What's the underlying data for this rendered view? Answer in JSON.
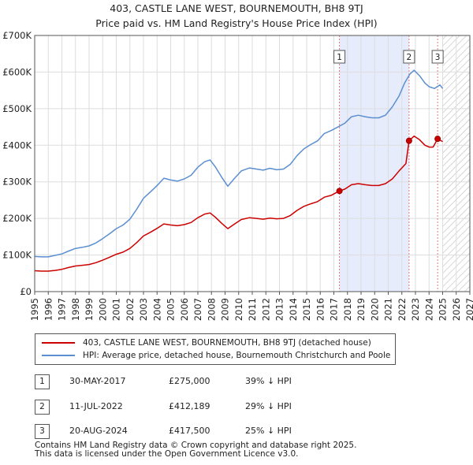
{
  "title": {
    "line1": "403, CASTLE LANE WEST, BOURNEMOUTH, BH8 9TJ",
    "line2": "Price paid vs. HM Land Registry's House Price Index (HPI)"
  },
  "colors": {
    "property": "#cc0000",
    "hpi": "#5b8fd0",
    "shade": "#e6ecfb",
    "hatch": "#bbbbbb",
    "vline": "#e07a7a"
  },
  "legend": {
    "property_label": "403, CASTLE LANE WEST, BOURNEMOUTH, BH8 9TJ (detached house)",
    "hpi_label": "HPI: Average price, detached house, Bournemouth Christchurch and Poole"
  },
  "chart_data": {
    "type": "line",
    "xlim": [
      1995,
      2027
    ],
    "ylim": [
      0,
      700000
    ],
    "x_ticks": [
      1995,
      1996,
      1997,
      1998,
      1999,
      2000,
      2001,
      2002,
      2003,
      2004,
      2005,
      2006,
      2007,
      2008,
      2009,
      2010,
      2011,
      2012,
      2013,
      2014,
      2015,
      2016,
      2017,
      2018,
      2019,
      2020,
      2021,
      2022,
      2023,
      2024,
      2025,
      2026,
      2027
    ],
    "y_ticks": [
      {
        "value": 0,
        "label": "£0"
      },
      {
        "value": 100000,
        "label": "£100K"
      },
      {
        "value": 200000,
        "label": "£200K"
      },
      {
        "value": 300000,
        "label": "£300K"
      },
      {
        "value": 400000,
        "label": "£400K"
      },
      {
        "value": 500000,
        "label": "£500K"
      },
      {
        "value": 600000,
        "label": "£600K"
      },
      {
        "value": 700000,
        "label": "£700K"
      }
    ],
    "shaded_range": [
      2017.41,
      2022.53
    ],
    "future_hatch_start": 2025.0,
    "series": [
      {
        "name": "HPI: Average price, detached house, Bournemouth Christchurch and Poole",
        "color": "#5b8fd0",
        "points": [
          [
            1995.0,
            96000
          ],
          [
            1995.5,
            95000
          ],
          [
            1996.0,
            95000
          ],
          [
            1996.5,
            99000
          ],
          [
            1997.0,
            103000
          ],
          [
            1997.5,
            111000
          ],
          [
            1998.0,
            118000
          ],
          [
            1998.5,
            121000
          ],
          [
            1999.0,
            125000
          ],
          [
            1999.5,
            133000
          ],
          [
            2000.0,
            145000
          ],
          [
            2000.5,
            158000
          ],
          [
            2001.0,
            172000
          ],
          [
            2001.5,
            182000
          ],
          [
            2002.0,
            198000
          ],
          [
            2002.5,
            225000
          ],
          [
            2003.0,
            255000
          ],
          [
            2003.5,
            272000
          ],
          [
            2004.0,
            290000
          ],
          [
            2004.5,
            310000
          ],
          [
            2005.0,
            305000
          ],
          [
            2005.5,
            302000
          ],
          [
            2006.0,
            308000
          ],
          [
            2006.5,
            318000
          ],
          [
            2007.0,
            340000
          ],
          [
            2007.5,
            355000
          ],
          [
            2007.9,
            360000
          ],
          [
            2008.3,
            340000
          ],
          [
            2008.8,
            310000
          ],
          [
            2009.2,
            288000
          ],
          [
            2009.7,
            310000
          ],
          [
            2010.2,
            330000
          ],
          [
            2010.8,
            338000
          ],
          [
            2011.3,
            335000
          ],
          [
            2011.8,
            332000
          ],
          [
            2012.3,
            337000
          ],
          [
            2012.8,
            333000
          ],
          [
            2013.3,
            335000
          ],
          [
            2013.8,
            348000
          ],
          [
            2014.3,
            372000
          ],
          [
            2014.8,
            390000
          ],
          [
            2015.3,
            402000
          ],
          [
            2015.8,
            412000
          ],
          [
            2016.3,
            432000
          ],
          [
            2016.8,
            440000
          ],
          [
            2017.3,
            450000
          ],
          [
            2017.8,
            460000
          ],
          [
            2018.3,
            478000
          ],
          [
            2018.8,
            482000
          ],
          [
            2019.3,
            478000
          ],
          [
            2019.8,
            475000
          ],
          [
            2020.3,
            475000
          ],
          [
            2020.8,
            482000
          ],
          [
            2021.3,
            505000
          ],
          [
            2021.8,
            535000
          ],
          [
            2022.2,
            570000
          ],
          [
            2022.6,
            595000
          ],
          [
            2022.9,
            605000
          ],
          [
            2023.3,
            590000
          ],
          [
            2023.7,
            570000
          ],
          [
            2024.0,
            560000
          ],
          [
            2024.4,
            555000
          ],
          [
            2024.8,
            565000
          ],
          [
            2025.0,
            555000
          ]
        ]
      },
      {
        "name": "403, CASTLE LANE WEST, BOURNEMOUTH, BH8 9TJ (detached house)",
        "color": "#cc0000",
        "points": [
          [
            1995.0,
            57000
          ],
          [
            1995.5,
            56000
          ],
          [
            1996.0,
            56000
          ],
          [
            1996.5,
            58000
          ],
          [
            1997.0,
            61000
          ],
          [
            1997.5,
            66000
          ],
          [
            1998.0,
            70000
          ],
          [
            1998.5,
            72000
          ],
          [
            1999.0,
            74000
          ],
          [
            1999.5,
            79000
          ],
          [
            2000.0,
            86000
          ],
          [
            2000.5,
            94000
          ],
          [
            2001.0,
            102000
          ],
          [
            2001.5,
            108000
          ],
          [
            2002.0,
            118000
          ],
          [
            2002.5,
            134000
          ],
          [
            2003.0,
            152000
          ],
          [
            2003.5,
            162000
          ],
          [
            2004.0,
            173000
          ],
          [
            2004.5,
            185000
          ],
          [
            2005.0,
            182000
          ],
          [
            2005.5,
            180000
          ],
          [
            2006.0,
            183000
          ],
          [
            2006.5,
            189000
          ],
          [
            2007.0,
            202000
          ],
          [
            2007.5,
            212000
          ],
          [
            2007.9,
            215000
          ],
          [
            2008.3,
            203000
          ],
          [
            2008.8,
            185000
          ],
          [
            2009.2,
            172000
          ],
          [
            2009.7,
            185000
          ],
          [
            2010.2,
            197000
          ],
          [
            2010.8,
            202000
          ],
          [
            2011.3,
            200000
          ],
          [
            2011.8,
            198000
          ],
          [
            2012.3,
            201000
          ],
          [
            2012.8,
            199000
          ],
          [
            2013.3,
            200000
          ],
          [
            2013.8,
            208000
          ],
          [
            2014.3,
            222000
          ],
          [
            2014.8,
            233000
          ],
          [
            2015.3,
            240000
          ],
          [
            2015.8,
            246000
          ],
          [
            2016.3,
            258000
          ],
          [
            2016.8,
            263000
          ],
          [
            2017.41,
            275000
          ],
          [
            2017.8,
            280000
          ],
          [
            2018.3,
            292000
          ],
          [
            2018.8,
            295000
          ],
          [
            2019.3,
            292000
          ],
          [
            2019.8,
            290000
          ],
          [
            2020.3,
            290000
          ],
          [
            2020.8,
            295000
          ],
          [
            2021.3,
            308000
          ],
          [
            2021.8,
            330000
          ],
          [
            2022.3,
            350000
          ],
          [
            2022.53,
            412189
          ],
          [
            2022.9,
            425000
          ],
          [
            2023.3,
            415000
          ],
          [
            2023.7,
            400000
          ],
          [
            2024.0,
            395000
          ],
          [
            2024.3,
            395000
          ],
          [
            2024.63,
            417500
          ],
          [
            2025.0,
            410000
          ]
        ]
      }
    ],
    "sales": [
      {
        "num": "1",
        "x": 2017.41,
        "y": 275000
      },
      {
        "num": "2",
        "x": 2022.53,
        "y": 412189
      },
      {
        "num": "3",
        "x": 2024.63,
        "y": 417500
      }
    ]
  },
  "transactions": [
    {
      "num": "1",
      "date": "30-MAY-2017",
      "price": "£275,000",
      "hpi": "39% ↓ HPI"
    },
    {
      "num": "2",
      "date": "11-JUL-2022",
      "price": "£412,189",
      "hpi": "29% ↓ HPI"
    },
    {
      "num": "3",
      "date": "20-AUG-2024",
      "price": "£417,500",
      "hpi": "25% ↓ HPI"
    }
  ],
  "footer": {
    "line1": "Contains HM Land Registry data © Crown copyright and database right 2025.",
    "line2": "This data is licensed under the Open Government Licence v3.0."
  }
}
